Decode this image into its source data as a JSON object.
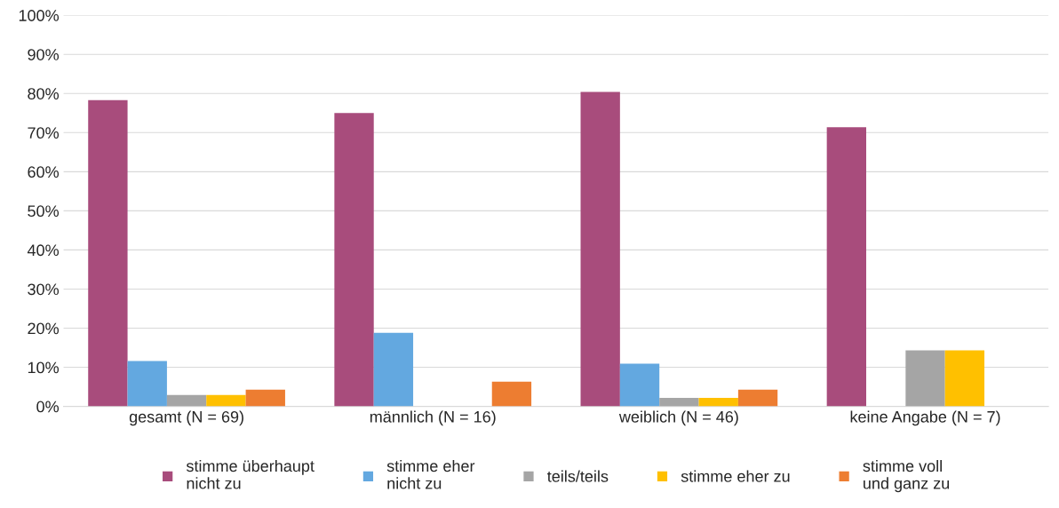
{
  "chart_data": {
    "type": "bar",
    "categories": [
      "gesamt (N = 69)",
      "männlich (N = 16)",
      "weiblich (N = 46)",
      "keine Angabe (N = 7)"
    ],
    "series": [
      {
        "name": "stimme überhaupt\nnicht zu",
        "color": "#a84c7c",
        "values": [
          78.3,
          75,
          80.4,
          71.4
        ]
      },
      {
        "name": "stimme eher\nnicht zu",
        "color": "#63a8e0",
        "values": [
          11.6,
          18.8,
          10.9,
          0
        ]
      },
      {
        "name": "teils/teils",
        "color": "#a5a5a5",
        "values": [
          2.9,
          0,
          2.2,
          14.3
        ]
      },
      {
        "name": "stimme eher zu",
        "color": "#ffc000",
        "values": [
          2.9,
          0,
          2.2,
          14.3
        ]
      },
      {
        "name": "stimme voll\nund ganz zu",
        "color": "#ed7d31",
        "values": [
          4.3,
          6.3,
          4.3,
          0
        ]
      }
    ],
    "ylim": [
      0,
      100
    ],
    "yticks": [
      {
        "value": 0,
        "label": "0%"
      },
      {
        "value": 10,
        "label": "10%"
      },
      {
        "value": 20,
        "label": "20%"
      },
      {
        "value": 30,
        "label": "30%"
      },
      {
        "value": 40,
        "label": "40%"
      },
      {
        "value": 50,
        "label": "50%"
      },
      {
        "value": 60,
        "label": "60%"
      },
      {
        "value": 70,
        "label": "70%"
      },
      {
        "value": 80,
        "label": "80%"
      },
      {
        "value": 90,
        "label": "90%"
      },
      {
        "value": 100,
        "label": "100%"
      }
    ],
    "grid": "y",
    "legend": "bottom"
  }
}
